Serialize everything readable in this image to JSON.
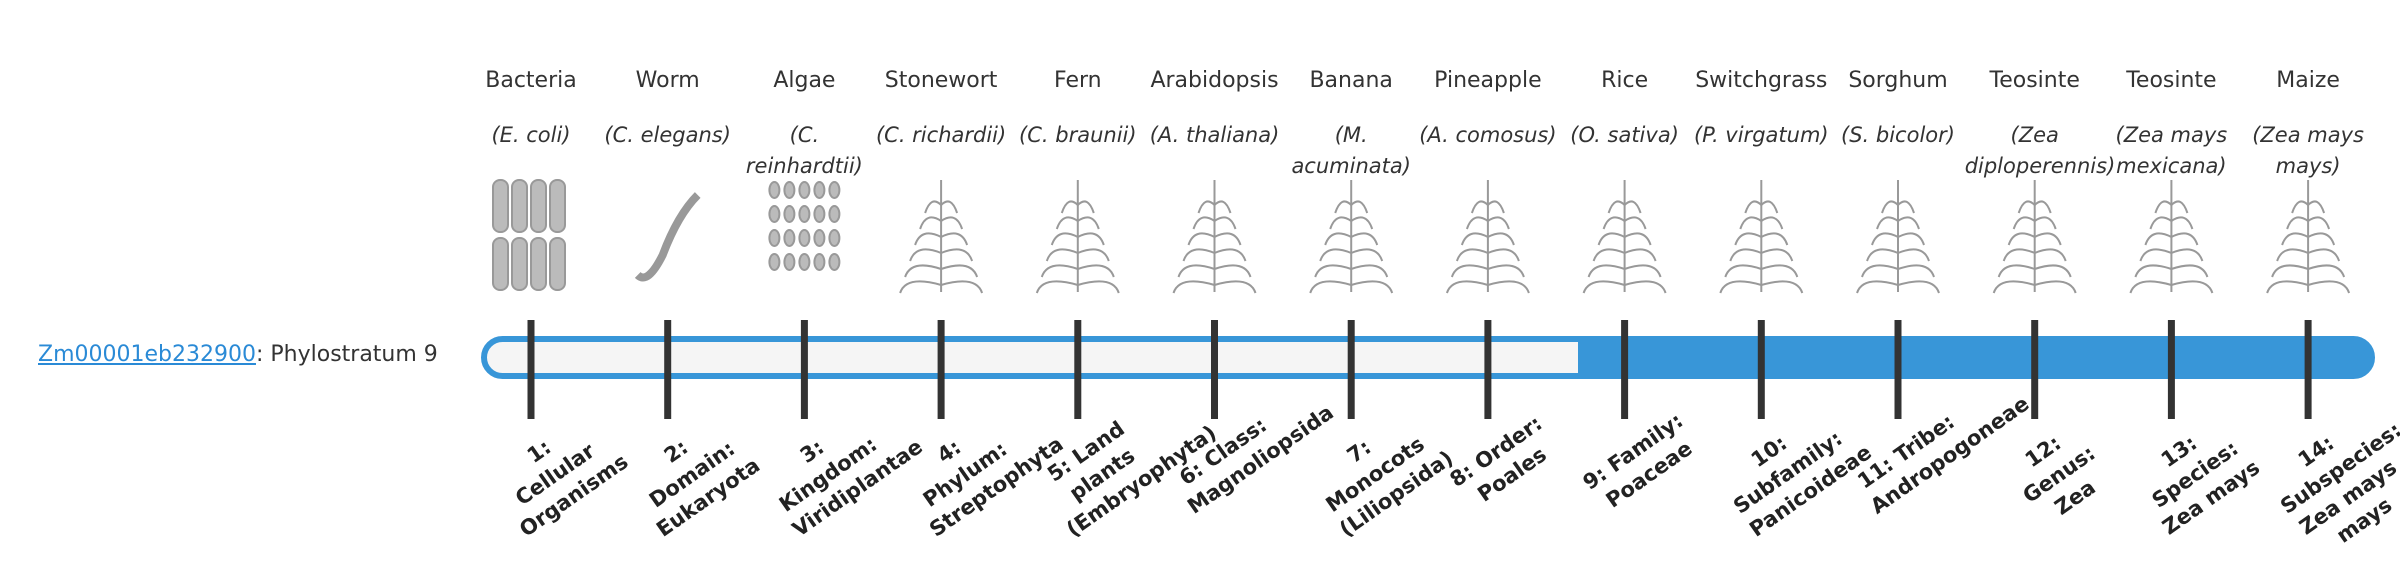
{
  "gene": {
    "id": "Zm00001eb232900",
    "suffix": ": Phylostratum 9"
  },
  "organisms": [
    {
      "name": "Bacteria",
      "scientific": "(E. coli)",
      "stratum": "1: Cellular Organisms"
    },
    {
      "name": "Worm",
      "scientific": "(C. elegans)",
      "stratum": "2: Domain: Eukaryota"
    },
    {
      "name": "Algae",
      "scientific": "(C. reinhardtii)",
      "stratum": "3: Kingdom: Viridiplantae"
    },
    {
      "name": "Stonewort",
      "scientific": "(C. richardii)",
      "stratum": "4: Phylum: Streptophyta"
    },
    {
      "name": "Fern",
      "scientific": "(C. braunii)",
      "stratum": "5: Land plants (Embryophyta)"
    },
    {
      "name": "Arabidopsis",
      "scientific": "(A. thaliana)",
      "stratum": "6: Class: Magnoliopsida"
    },
    {
      "name": "Banana",
      "scientific": "(M. acuminata)",
      "stratum": "7: Monocots (Liliopsida)"
    },
    {
      "name": "Pineapple",
      "scientific": "(A. comosus)",
      "stratum": "8: Order: Poales"
    },
    {
      "name": "Rice",
      "scientific": "(O. sativa)",
      "stratum": "9: Family: Poaceae"
    },
    {
      "name": "Switchgrass",
      "scientific": "(P. virgatum)",
      "stratum": "10: Subfamily: Panicoideae"
    },
    {
      "name": "Sorghum",
      "scientific": "(S. bicolor)",
      "stratum": "11: Tribe: Andropogoneae"
    },
    {
      "name": "Teosinte",
      "scientific": "(Zea diploperennis)",
      "stratum": "12: Genus: Zea"
    },
    {
      "name": "Teosinte",
      "scientific": "(Zea mays mexicana)",
      "stratum": "13: Species: Zea mays"
    },
    {
      "name": "Maize",
      "scientific": "(Zea mays mays)",
      "stratum": "14: Subspecies: Zea mays mays"
    }
  ]
}
